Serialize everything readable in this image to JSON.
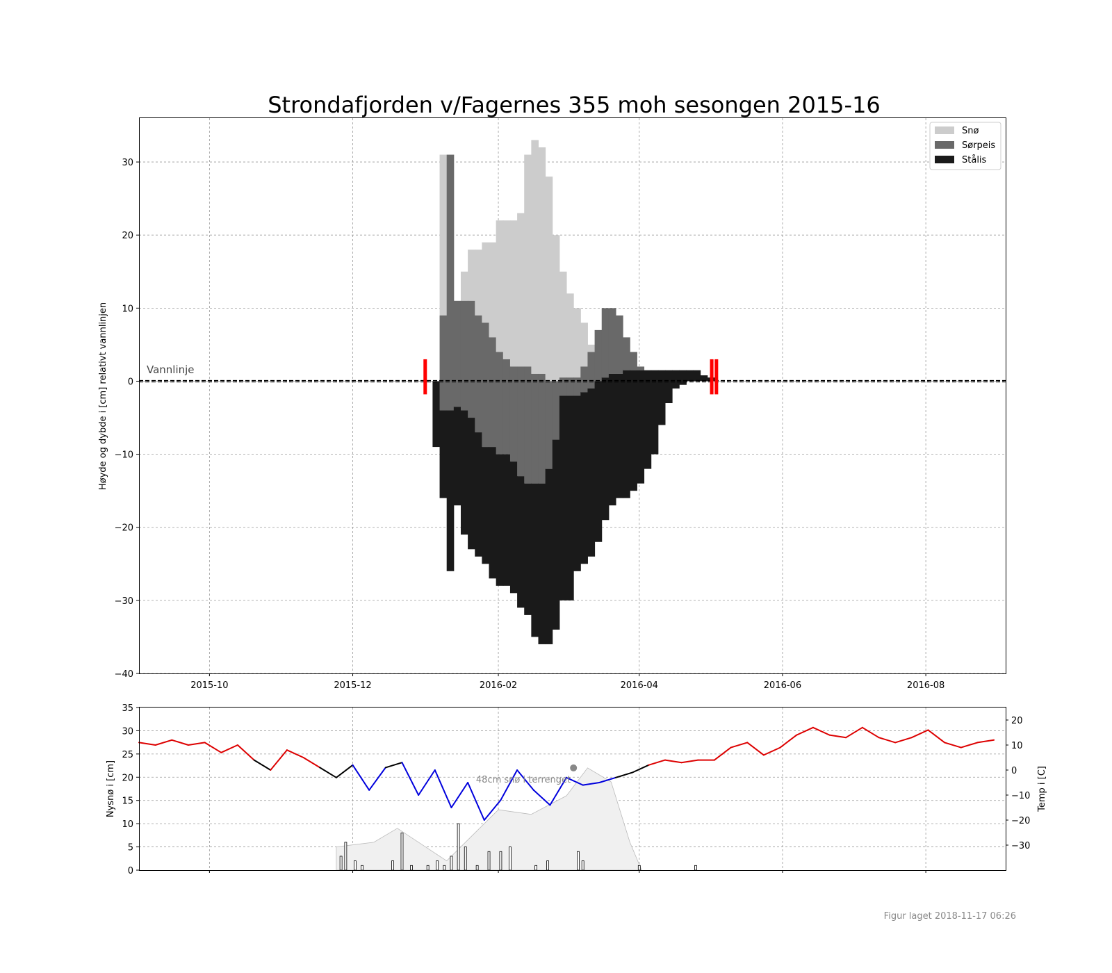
{
  "title": "Strondafjorden v/Fagernes 355 moh sesongen 2015-16",
  "footer": "Figur laget 2018-11-17 06:26",
  "chart_data": [
    {
      "type": "bar",
      "ylabel": "Høyde og dybde i [cm] relativt vannlinjen",
      "ylim": [
        -40,
        36
      ],
      "xlim": [
        "2015-09-01",
        "2016-09-04"
      ],
      "yticks": [
        30,
        20,
        10,
        0,
        -10,
        -20,
        -30,
        -40
      ],
      "ytick_labels": [
        "30",
        "20",
        "10",
        "0",
        "−10",
        "−20",
        "−30",
        "−40"
      ],
      "xticks": [
        "2015-10-01",
        "2015-12-01",
        "2016-02-01",
        "2016-04-01",
        "2016-06-01",
        "2016-08-01"
      ],
      "xtick_labels": [
        "2015-10",
        "2015-12",
        "2016-02",
        "2016-04",
        "2016-06",
        "2016-08"
      ],
      "grid": true,
      "legend_position": "top-right",
      "waterline_label": "Vannlinje",
      "series": [
        {
          "name": "Snø",
          "color": "#cccccc"
        },
        {
          "name": "Sørpeis",
          "color": "#696969"
        },
        {
          "name": "Stålis",
          "color": "#1a1a1a"
        }
      ],
      "ice_layers": {
        "dates": [
          "2016-01-01",
          "2016-01-04",
          "2016-01-07",
          "2016-01-10",
          "2016-01-13",
          "2016-01-16",
          "2016-01-19",
          "2016-01-22",
          "2016-01-25",
          "2016-01-28",
          "2016-01-31",
          "2016-02-03",
          "2016-02-06",
          "2016-02-09",
          "2016-02-12",
          "2016-02-15",
          "2016-02-18",
          "2016-02-21",
          "2016-02-24",
          "2016-02-27",
          "2016-03-01",
          "2016-03-04",
          "2016-03-07",
          "2016-03-10",
          "2016-03-13",
          "2016-03-16",
          "2016-03-19",
          "2016-03-22",
          "2016-03-25",
          "2016-03-28",
          "2016-03-31",
          "2016-04-03",
          "2016-04-06",
          "2016-04-09",
          "2016-04-12",
          "2016-04-15",
          "2016-04-18",
          "2016-04-21",
          "2016-04-24",
          "2016-04-27",
          "2016-04-30",
          "2016-05-03",
          "2016-05-06"
        ],
        "top": [
          0,
          0,
          9,
          31,
          11,
          11,
          11,
          9,
          8,
          6,
          4,
          3,
          2,
          2,
          2,
          1,
          1,
          0,
          0,
          0.5,
          0.5,
          0.5,
          2,
          4,
          7,
          10,
          10,
          9,
          6,
          4,
          2,
          1.5,
          1.5,
          1.5,
          1.5,
          1.5,
          1.5,
          1.5,
          1.5,
          0.8,
          0.5,
          0,
          0
        ],
        "snow_top": [
          0,
          0,
          31,
          31,
          11,
          15,
          18,
          18,
          19,
          19,
          22,
          22,
          22,
          23,
          31,
          33,
          32,
          28,
          20,
          15,
          12,
          10,
          8,
          5,
          3,
          2,
          1.5,
          1.5,
          1.5,
          1.5,
          1.5,
          1.5,
          1.5,
          1.5,
          1.5,
          1.5,
          1.5,
          1.5,
          1.5,
          0.8,
          0.5,
          0,
          0
        ],
        "slush_bottom": [
          0,
          0,
          -4,
          -4,
          -3.5,
          -4,
          -5,
          -7,
          -9,
          -9,
          -10,
          -10,
          -11,
          -13,
          -14,
          -14,
          -14,
          -12,
          -8,
          -2,
          -2,
          -2,
          -1.5,
          -1,
          0,
          0.5,
          1,
          1,
          1.5,
          1.5,
          1.5,
          1.5,
          1.5,
          1.5,
          1.5,
          1.5,
          1.5,
          1.5,
          1.5,
          0.8,
          0.5,
          0,
          0
        ],
        "ice_bottom": [
          0,
          -9,
          -16,
          -26,
          -17,
          -21,
          -23,
          -24,
          -25,
          -27,
          -28,
          -28,
          -29,
          -31,
          -32,
          -35,
          -36,
          -36,
          -34,
          -30,
          -30,
          -26,
          -25,
          -24,
          -22,
          -19,
          -17,
          -16,
          -16,
          -15,
          -14,
          -12,
          -10,
          -6,
          -3,
          -1,
          -0.5,
          0,
          0,
          0,
          0,
          0,
          0
        ]
      },
      "markers": [
        {
          "date": "2016-01-01",
          "kind": "freeze-up",
          "color": "#ff0000"
        },
        {
          "date": "2016-05-02",
          "kind": "break-up",
          "color": "#ff0000"
        },
        {
          "date": "2016-05-04",
          "kind": "break-up",
          "color": "#ff0000"
        }
      ]
    },
    {
      "type": "line",
      "ylabel": "Nysnø i [cm]",
      "y2label": "Temp i [C]",
      "ylim": [
        0,
        35
      ],
      "y2lim": [
        -40,
        25
      ],
      "yticks": [
        0,
        5,
        10,
        15,
        20,
        25,
        30,
        35
      ],
      "ytick_labels": [
        "0",
        "5",
        "10",
        "15",
        "20",
        "25",
        "30",
        "35"
      ],
      "y2ticks": [
        20,
        10,
        0,
        -10,
        -20,
        -30
      ],
      "y2tick_labels": [
        "20",
        "10",
        "0",
        "−10",
        "−20",
        "−30"
      ],
      "grid": true,
      "annotation": "48cm snø i terrenget",
      "annotation_point": {
        "date": "2016-03-04",
        "value": 22
      },
      "temperature": {
        "dates": [
          "2015-09-01",
          "2015-09-08",
          "2015-09-15",
          "2015-09-22",
          "2015-09-29",
          "2015-10-06",
          "2015-10-13",
          "2015-10-20",
          "2015-10-27",
          "2015-11-03",
          "2015-11-10",
          "2015-11-17",
          "2015-11-24",
          "2015-12-01",
          "2015-12-08",
          "2015-12-15",
          "2015-12-22",
          "2015-12-29",
          "2016-01-05",
          "2016-01-12",
          "2016-01-19",
          "2016-01-26",
          "2016-02-02",
          "2016-02-09",
          "2016-02-16",
          "2016-02-23",
          "2016-03-01",
          "2016-03-08",
          "2016-03-15",
          "2016-03-22",
          "2016-03-29",
          "2016-04-05",
          "2016-04-12",
          "2016-04-19",
          "2016-04-26",
          "2016-05-03",
          "2016-05-10",
          "2016-05-17",
          "2016-05-24",
          "2016-05-31",
          "2016-06-07",
          "2016-06-14",
          "2016-06-21",
          "2016-06-28",
          "2016-07-05",
          "2016-07-12",
          "2016-07-19",
          "2016-07-26",
          "2016-08-02",
          "2016-08-09",
          "2016-08-16",
          "2016-08-23",
          "2016-08-30"
        ],
        "values": [
          11,
          10,
          12,
          10,
          11,
          7,
          10,
          4,
          0,
          8,
          5,
          1,
          -3,
          2,
          -8,
          1,
          3,
          -10,
          0,
          -15,
          -5,
          -20,
          -12,
          0,
          -8,
          -14,
          -3,
          -6,
          -5,
          -3,
          -1,
          2,
          4,
          3,
          4,
          4,
          9,
          11,
          6,
          9,
          14,
          17,
          14,
          13,
          17,
          13,
          11,
          13,
          16,
          11,
          9,
          11,
          12
        ],
        "colors": {
          "above": "#dd0000",
          "below": "#0000dd",
          "near_zero": "#000000"
        }
      },
      "snow_depth_terrain": {
        "dates": [
          "2015-11-24",
          "2015-12-10",
          "2015-12-20",
          "2016-01-01",
          "2016-01-10",
          "2016-01-20",
          "2016-02-01",
          "2016-02-15",
          "2016-03-01",
          "2016-03-10",
          "2016-03-20",
          "2016-03-28",
          "2016-04-02"
        ],
        "values": [
          5,
          6,
          9,
          5,
          2,
          7,
          13,
          12,
          16,
          22,
          19,
          6,
          0
        ]
      },
      "new_snow": {
        "dates": [
          "2015-11-26",
          "2015-11-28",
          "2015-12-02",
          "2015-12-05",
          "2015-12-18",
          "2015-12-22",
          "2015-12-26",
          "2016-01-02",
          "2016-01-06",
          "2016-01-09",
          "2016-01-12",
          "2016-01-15",
          "2016-01-18",
          "2016-01-23",
          "2016-01-28",
          "2016-02-02",
          "2016-02-06",
          "2016-02-17",
          "2016-02-22",
          "2016-03-06",
          "2016-03-08",
          "2016-04-01",
          "2016-04-25"
        ],
        "values": [
          3,
          6,
          2,
          1,
          2,
          8,
          1,
          1,
          2,
          1,
          3,
          10,
          5,
          1,
          4,
          4,
          5,
          1,
          2,
          4,
          2,
          1,
          1
        ]
      }
    }
  ]
}
